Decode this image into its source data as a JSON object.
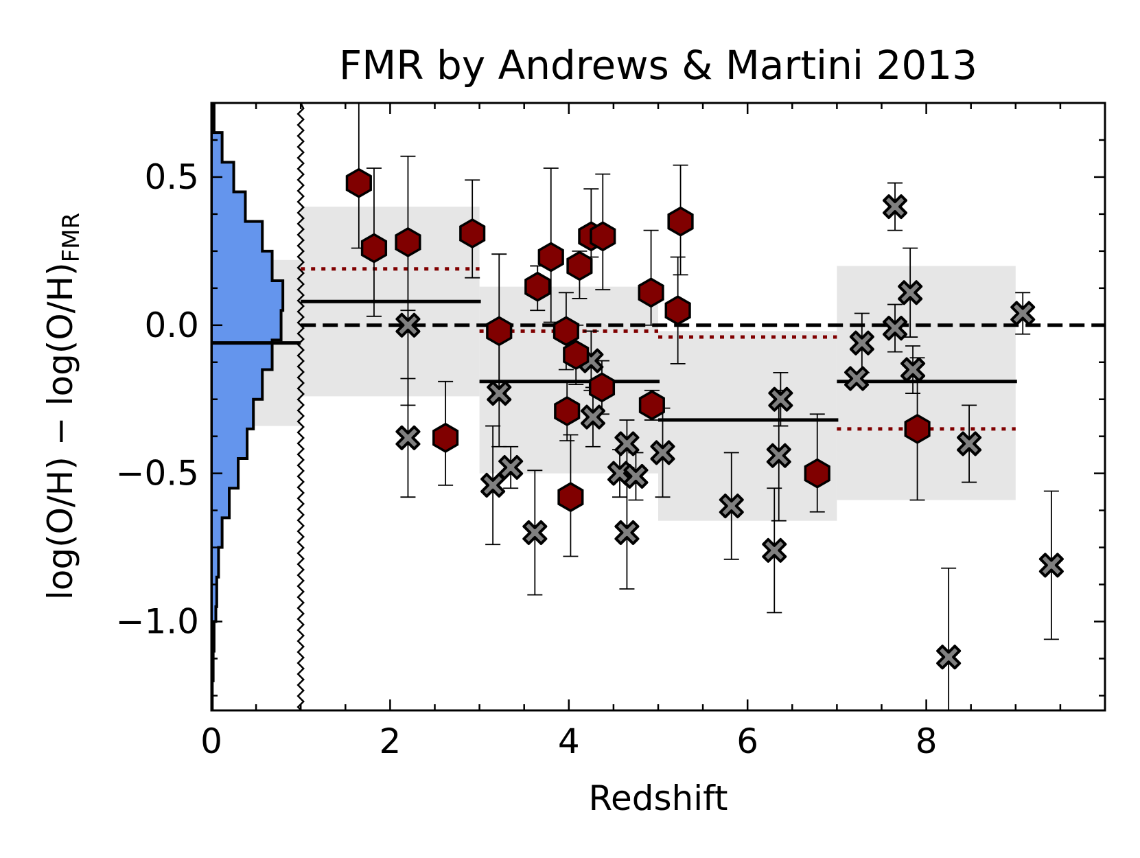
{
  "chart_data": {
    "type": "scatter",
    "title": "FMR by Andrews & Martini 2013",
    "xlabel": "Redshift",
    "ylabel": "log(O/H) − log(O/H)",
    "ylabel_sub": "FMR",
    "xlim": [
      0,
      10
    ],
    "ylim": [
      -1.3,
      0.75
    ],
    "x_ticks": [
      0,
      2,
      4,
      6,
      8
    ],
    "x_tick_labels": [
      "0",
      "2",
      "4",
      "6",
      "8"
    ],
    "y_ticks": [
      -1.0,
      -0.5,
      0.0,
      0.5
    ],
    "y_tick_labels": [
      "−1.0",
      "−0.5",
      "0.0",
      "0.5"
    ],
    "zero_line": 0.0,
    "histogram_break_x": 1.0,
    "low_z_histogram": {
      "bin_edges": [
        -1.3,
        -1.2,
        -1.1,
        -1.0,
        -0.95,
        -0.85,
        -0.75,
        -0.65,
        -0.55,
        -0.45,
        -0.35,
        -0.25,
        -0.15,
        -0.05,
        0.05,
        0.15,
        0.25,
        0.35,
        0.45,
        0.55,
        0.65,
        0.75
      ],
      "widths": [
        0.01,
        0.02,
        0.03,
        0.05,
        0.06,
        0.08,
        0.12,
        0.2,
        0.3,
        0.4,
        0.47,
        0.57,
        0.68,
        0.78,
        0.8,
        0.68,
        0.57,
        0.38,
        0.25,
        0.12,
        0.03
      ],
      "median": -0.06,
      "band": [
        -0.34,
        0.22
      ],
      "color": "#6495ed"
    },
    "bins": [
      {
        "x_range": [
          1,
          3
        ],
        "median": 0.08,
        "band": [
          -0.24,
          0.4
        ],
        "dotted": 0.19
      },
      {
        "x_range": [
          3,
          5
        ],
        "median": -0.19,
        "band": [
          -0.5,
          0.13
        ],
        "dotted": -0.02
      },
      {
        "x_range": [
          5,
          7
        ],
        "median": -0.32,
        "band": [
          -0.66,
          -0.02
        ],
        "dotted": -0.04
      },
      {
        "x_range": [
          7,
          9
        ],
        "median": -0.19,
        "band": [
          -0.59,
          0.2
        ],
        "dotted": -0.35
      }
    ],
    "series": [
      {
        "marker": "hexagon",
        "color": "#800000",
        "points": [
          {
            "x": 1.65,
            "y": 0.48,
            "err_lo": 0.22,
            "err_hi": 0.3
          },
          {
            "x": 1.82,
            "y": 0.26,
            "err_lo": 0.23,
            "err_hi": 0.27
          },
          {
            "x": 2.2,
            "y": 0.28,
            "err_lo": 0.27,
            "err_hi": 0.29
          },
          {
            "x": 2.62,
            "y": -0.38,
            "err_lo": 0.16,
            "err_hi": 0.19
          },
          {
            "x": 2.92,
            "y": 0.31,
            "err_lo": 0.15,
            "err_hi": 0.18
          },
          {
            "x": 3.22,
            "y": -0.02,
            "err_lo": 0.21,
            "err_hi": 0.26
          },
          {
            "x": 3.65,
            "y": 0.13,
            "err_lo": 0.08,
            "err_hi": 0.07
          },
          {
            "x": 3.8,
            "y": 0.23,
            "err_lo": 0.22,
            "err_hi": 0.3
          },
          {
            "x": 3.97,
            "y": -0.02,
            "err_lo": 0.13,
            "err_hi": 0.13
          },
          {
            "x": 3.98,
            "y": -0.29,
            "err_lo": 0.1,
            "err_hi": 0.1
          },
          {
            "x": 4.02,
            "y": -0.58,
            "err_lo": 0.2,
            "err_hi": 0.21
          },
          {
            "x": 4.08,
            "y": -0.1,
            "err_lo": 0.1,
            "err_hi": 0.1
          },
          {
            "x": 4.12,
            "y": 0.2,
            "err_lo": 0.11,
            "err_hi": 0.05
          },
          {
            "x": 4.25,
            "y": 0.3,
            "err_lo": 0.07,
            "err_hi": 0.16
          },
          {
            "x": 4.38,
            "y": 0.3,
            "err_lo": 0.18,
            "err_hi": 0.21
          },
          {
            "x": 4.37,
            "y": -0.21,
            "err_lo": 0.09,
            "err_hi": 0.09
          },
          {
            "x": 4.92,
            "y": 0.11,
            "err_lo": 0.11,
            "err_hi": 0.21
          },
          {
            "x": 4.93,
            "y": -0.27,
            "err_lo": 0.05,
            "err_hi": 0.05
          },
          {
            "x": 5.22,
            "y": 0.05,
            "err_lo": 0.18,
            "err_hi": 0.18
          },
          {
            "x": 5.25,
            "y": 0.35,
            "err_lo": 0.18,
            "err_hi": 0.19
          },
          {
            "x": 6.78,
            "y": -0.5,
            "err_lo": 0.13,
            "err_hi": 0.2
          },
          {
            "x": 7.9,
            "y": -0.35,
            "err_lo": 0.24,
            "err_hi": 0.24
          }
        ]
      },
      {
        "marker": "x",
        "color": "#808080",
        "points": [
          {
            "x": 2.2,
            "y": 0.0,
            "err_lo": 0.27,
            "err_hi": 0.05
          },
          {
            "x": 2.2,
            "y": -0.38,
            "err_lo": 0.2,
            "err_hi": 0.2
          },
          {
            "x": 3.15,
            "y": -0.54,
            "err_lo": 0.2,
            "err_hi": 0.2
          },
          {
            "x": 3.22,
            "y": -0.23,
            "err_lo": 0.18,
            "err_hi": 0.18
          },
          {
            "x": 3.35,
            "y": -0.48,
            "err_lo": 0.07,
            "err_hi": 0.07
          },
          {
            "x": 3.62,
            "y": -0.7,
            "err_lo": 0.21,
            "err_hi": 0.21
          },
          {
            "x": 4.25,
            "y": -0.12,
            "err_lo": 0.1,
            "err_hi": 0.1
          },
          {
            "x": 4.27,
            "y": -0.31,
            "err_lo": 0.1,
            "err_hi": 0.1
          },
          {
            "x": 4.57,
            "y": -0.5,
            "err_lo": 0.08,
            "err_hi": 0.08
          },
          {
            "x": 4.65,
            "y": -0.4,
            "err_lo": 0.08,
            "err_hi": 0.08
          },
          {
            "x": 4.65,
            "y": -0.7,
            "err_lo": 0.19,
            "err_hi": 0.19
          },
          {
            "x": 4.75,
            "y": -0.51,
            "err_lo": 0.08,
            "err_hi": 0.08
          },
          {
            "x": 5.05,
            "y": -0.43,
            "err_lo": 0.15,
            "err_hi": 0.15
          },
          {
            "x": 5.82,
            "y": -0.61,
            "err_lo": 0.18,
            "err_hi": 0.18
          },
          {
            "x": 6.3,
            "y": -0.76,
            "err_lo": 0.21,
            "err_hi": 0.21
          },
          {
            "x": 6.35,
            "y": -0.44,
            "err_lo": 0.22,
            "err_hi": 0.22
          },
          {
            "x": 6.37,
            "y": -0.25,
            "err_lo": 0.09,
            "err_hi": 0.09
          },
          {
            "x": 7.22,
            "y": -0.18,
            "err_lo": 0.02,
            "err_hi": 0.02
          },
          {
            "x": 7.28,
            "y": -0.06,
            "err_lo": 0.1,
            "err_hi": 0.1
          },
          {
            "x": 7.65,
            "y": 0.4,
            "err_lo": 0.08,
            "err_hi": 0.08
          },
          {
            "x": 7.65,
            "y": -0.01,
            "err_lo": 0.08,
            "err_hi": 0.08
          },
          {
            "x": 7.82,
            "y": 0.11,
            "err_lo": 0.15,
            "err_hi": 0.15
          },
          {
            "x": 7.85,
            "y": -0.15,
            "err_lo": 0.08,
            "err_hi": 0.08
          },
          {
            "x": 8.25,
            "y": -1.12,
            "err_lo": 0.3,
            "err_hi": 0.3
          },
          {
            "x": 8.48,
            "y": -0.4,
            "err_lo": 0.13,
            "err_hi": 0.13
          },
          {
            "x": 9.08,
            "y": 0.04,
            "err_lo": 0.07,
            "err_hi": 0.07
          },
          {
            "x": 9.4,
            "y": -0.81,
            "err_lo": 0.25,
            "err_hi": 0.25
          }
        ]
      }
    ],
    "colors": {
      "band": "#e6e6e6",
      "median": "#000000",
      "dotted": "#800000",
      "hex_fill": "#800000",
      "x_fill": "#808080"
    }
  }
}
